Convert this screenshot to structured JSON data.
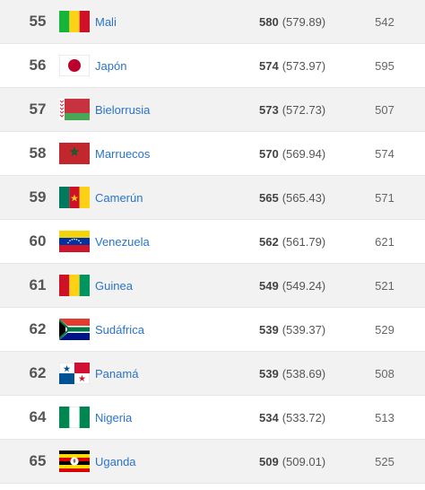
{
  "rows": [
    {
      "rank": "55",
      "country": "Mali",
      "flag": "mali-flag-icon",
      "points": "580",
      "points_exact": "(579.89)",
      "previous": "542"
    },
    {
      "rank": "56",
      "country": "Japón",
      "flag": "japan-flag-icon",
      "points": "574",
      "points_exact": "(573.97)",
      "previous": "595"
    },
    {
      "rank": "57",
      "country": "Bielorrusia",
      "flag": "belarus-flag-icon",
      "points": "573",
      "points_exact": "(572.73)",
      "previous": "507"
    },
    {
      "rank": "58",
      "country": "Marruecos",
      "flag": "morocco-flag-icon",
      "points": "570",
      "points_exact": "(569.94)",
      "previous": "574"
    },
    {
      "rank": "59",
      "country": "Camerún",
      "flag": "cameroon-flag-icon",
      "points": "565",
      "points_exact": "(565.43)",
      "previous": "571"
    },
    {
      "rank": "60",
      "country": "Venezuela",
      "flag": "venezuela-flag-icon",
      "points": "562",
      "points_exact": "(561.79)",
      "previous": "621"
    },
    {
      "rank": "61",
      "country": "Guinea",
      "flag": "guinea-flag-icon",
      "points": "549",
      "points_exact": "(549.24)",
      "previous": "521"
    },
    {
      "rank": "62",
      "country": "Sudáfrica",
      "flag": "south-africa-flag-icon",
      "points": "539",
      "points_exact": "(539.37)",
      "previous": "529"
    },
    {
      "rank": "62",
      "country": "Panamá",
      "flag": "panama-flag-icon",
      "points": "539",
      "points_exact": "(538.69)",
      "previous": "508"
    },
    {
      "rank": "64",
      "country": "Nigeria",
      "flag": "nigeria-flag-icon",
      "points": "534",
      "points_exact": "(533.72)",
      "previous": "513"
    },
    {
      "rank": "65",
      "country": "Uganda",
      "flag": "uganda-flag-icon",
      "points": "509",
      "points_exact": "(509.01)",
      "previous": "525"
    }
  ],
  "colors": {
    "link": "#2a73c9",
    "row_alt": "#f2f2f2",
    "row_base": "#ffffff",
    "border": "#e6e6e6"
  }
}
